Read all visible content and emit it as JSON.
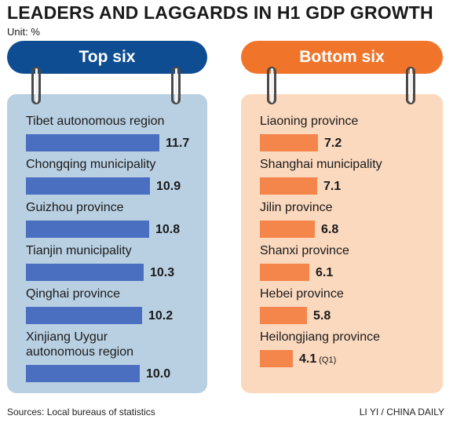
{
  "title": "LEADERS AND LAGGARDS IN H1 GDP GROWTH",
  "unit": "Unit: %",
  "source": "Sources: Local bureaus of statistics",
  "credit": "LI YI / CHINA DAILY",
  "colors": {
    "top_header": "#0f4d92",
    "top_bar": "#4a6fc0",
    "top_panel": "#b9d0e3",
    "bottom_header": "#f0752b",
    "bottom_bar": "#f4854b",
    "bottom_panel": "#fbd9bf"
  },
  "chart_data": [
    {
      "type": "bar",
      "title": "Top six",
      "categories": [
        "Tibet autonomous region",
        "Chongqing municipality",
        "Guizhou province",
        "Tianjin municipality",
        "Qinghai province",
        "Xinjiang Uygur autonomous region"
      ],
      "label_lines": [
        [
          "Tibet autonomous region"
        ],
        [
          "Chongqing municipality"
        ],
        [
          "Guizhou province"
        ],
        [
          "Tianjin municipality"
        ],
        [
          "Qinghai province"
        ],
        [
          "Xinjiang Uygur",
          "autonomous region"
        ]
      ],
      "values": [
        11.7,
        10.9,
        10.8,
        10.3,
        10.2,
        10.0
      ],
      "value_labels": [
        "11.7",
        "10.9",
        "10.8",
        "10.3",
        "10.2",
        "10.0"
      ],
      "notes": [
        "",
        "",
        "",
        "",
        "",
        ""
      ]
    },
    {
      "type": "bar",
      "title": "Bottom six",
      "categories": [
        "Liaoning province",
        "Shanghai municipality",
        "Jilin province",
        "Shanxi province",
        "Hebei province",
        "Heilongjiang province"
      ],
      "label_lines": [
        [
          "Liaoning province"
        ],
        [
          "Shanghai municipality"
        ],
        [
          "Jilin province"
        ],
        [
          "Shanxi province"
        ],
        [
          "Hebei province"
        ],
        [
          "Heilongjiang province"
        ]
      ],
      "values": [
        7.2,
        7.1,
        6.8,
        6.1,
        5.8,
        4.1
      ],
      "value_labels": [
        "7.2",
        "7.1",
        "6.8",
        "6.1",
        "5.8",
        "4.1"
      ],
      "notes": [
        "",
        "",
        "",
        "",
        "",
        "(Q1)"
      ]
    }
  ]
}
